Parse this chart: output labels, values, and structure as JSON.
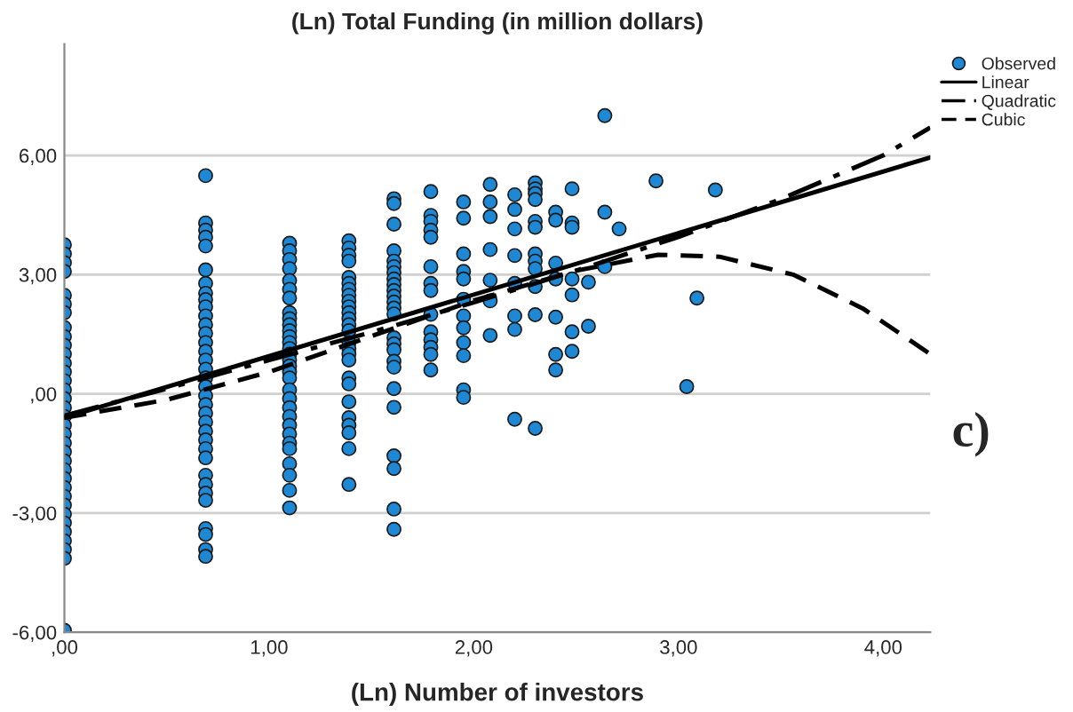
{
  "chart_data": {
    "type": "scatter",
    "title": "(Ln) Total Funding (in million dollars)",
    "xlabel": "(Ln) Number of investors",
    "annotations": [
      "c)"
    ],
    "xlim": [
      0,
      4.23
    ],
    "ylim": [
      -6,
      8.8
    ],
    "xticks": [
      {
        "value": 0,
        "label": ",00"
      },
      {
        "value": 1,
        "label": "1,00"
      },
      {
        "value": 2,
        "label": "2,00"
      },
      {
        "value": 3,
        "label": "3,00"
      },
      {
        "value": 4,
        "label": "4,00"
      }
    ],
    "yticks": [
      {
        "value": -6,
        "label": "-6,00"
      },
      {
        "value": -3,
        "label": "-3,00"
      },
      {
        "value": 0,
        "label": ",00"
      },
      {
        "value": 3,
        "label": "3,00"
      },
      {
        "value": 6,
        "label": "6,00"
      }
    ],
    "grid": "y",
    "legend": "top right",
    "series": [
      {
        "name": "Observed",
        "marker": "circle",
        "color": "#1e88d4",
        "x": [
          0,
          0,
          0,
          0,
          0,
          0,
          0,
          0,
          0,
          0,
          0,
          0,
          0,
          0,
          0,
          0,
          0,
          0,
          0,
          0,
          0,
          0,
          0,
          0,
          0,
          0,
          0,
          0,
          0,
          0,
          0,
          0,
          0,
          0,
          0,
          0.69,
          0.69,
          0.69,
          0.69,
          0.69,
          0.69,
          0.69,
          0.69,
          0.69,
          0.69,
          0.69,
          0.69,
          0.69,
          0.69,
          0.69,
          0.69,
          0.69,
          0.69,
          0.69,
          0.69,
          0.69,
          0.69,
          0.69,
          0.69,
          0.69,
          0.69,
          0.69,
          0.69,
          0.69,
          0.69,
          0.69,
          0.69,
          0.69,
          0.69,
          0.69,
          1.1,
          1.1,
          1.1,
          1.1,
          1.1,
          1.1,
          1.1,
          1.1,
          1.1,
          1.1,
          1.1,
          1.1,
          1.1,
          1.1,
          1.1,
          1.1,
          1.1,
          1.1,
          1.1,
          1.1,
          1.1,
          1.1,
          1.1,
          1.1,
          1.1,
          1.1,
          1.1,
          1.1,
          1.1,
          1.1,
          1.1,
          1.39,
          1.39,
          1.39,
          1.39,
          1.39,
          1.39,
          1.39,
          1.39,
          1.39,
          1.39,
          1.39,
          1.39,
          1.39,
          1.39,
          1.39,
          1.39,
          1.39,
          1.39,
          1.39,
          1.39,
          1.39,
          1.39,
          1.39,
          1.39,
          1.39,
          1.39,
          1.61,
          1.61,
          1.61,
          1.61,
          1.61,
          1.61,
          1.61,
          1.61,
          1.61,
          1.61,
          1.61,
          1.61,
          1.61,
          1.61,
          1.61,
          1.61,
          1.61,
          1.61,
          1.61,
          1.61,
          1.61,
          1.61,
          1.61,
          1.61,
          1.61,
          1.79,
          1.79,
          1.79,
          1.79,
          1.79,
          1.79,
          1.79,
          1.79,
          1.79,
          1.79,
          1.79,
          1.79,
          1.79,
          1.79,
          1.95,
          1.95,
          1.95,
          1.95,
          1.95,
          1.95,
          1.95,
          1.95,
          1.95,
          1.95,
          1.95,
          1.95,
          2.08,
          2.08,
          2.08,
          2.08,
          2.08,
          2.08,
          2.08,
          2.2,
          2.2,
          2.2,
          2.2,
          2.2,
          2.2,
          2.2,
          2.2,
          2.3,
          2.3,
          2.3,
          2.3,
          2.3,
          2.3,
          2.3,
          2.3,
          2.3,
          2.3,
          2.3,
          2.3,
          2.4,
          2.4,
          2.4,
          2.4,
          2.4,
          2.4,
          2.4,
          2.48,
          2.48,
          2.48,
          2.48,
          2.48,
          2.48,
          2.48,
          2.56,
          2.56,
          2.64,
          2.64,
          2.64,
          2.71,
          2.89,
          3.04,
          3.09,
          3.18
        ],
        "values": [
          3.75,
          3.52,
          3.3,
          3.08,
          2.48,
          2.26,
          2.04,
          1.67,
          1.44,
          1.22,
          1.0,
          0.77,
          0.55,
          0.33,
          0.1,
          -0.12,
          -0.35,
          -0.57,
          -0.79,
          -1.01,
          -1.24,
          -1.46,
          -1.69,
          -1.91,
          -2.13,
          -2.36,
          -2.58,
          -2.8,
          -3.03,
          -3.25,
          -3.47,
          -3.7,
          -3.92,
          -4.14,
          -5.95,
          5.49,
          4.3,
          4.12,
          3.94,
          3.72,
          3.12,
          2.78,
          2.53,
          2.37,
          2.19,
          1.96,
          1.74,
          1.52,
          1.29,
          1.07,
          0.85,
          0.62,
          0.4,
          0.18,
          -0.05,
          -0.27,
          -0.49,
          -0.71,
          -0.94,
          -1.16,
          -1.38,
          -1.61,
          -2.05,
          -2.28,
          -2.5,
          -2.68,
          -3.39,
          -3.54,
          -3.92,
          -4.09,
          3.79,
          3.6,
          3.38,
          3.15,
          2.85,
          2.63,
          2.41,
          2.04,
          1.89,
          1.74,
          1.59,
          1.44,
          1.29,
          1.14,
          1.0,
          0.85,
          0.7,
          0.55,
          0.4,
          0.1,
          -0.12,
          -0.35,
          -0.57,
          -0.79,
          -1.01,
          -1.24,
          -1.38,
          -1.76,
          -2.05,
          -2.43,
          -2.87,
          3.85,
          3.67,
          3.49,
          3.34,
          2.93,
          2.78,
          2.63,
          2.48,
          2.33,
          2.19,
          2.04,
          1.89,
          1.74,
          1.59,
          1.29,
          1.14,
          1.0,
          0.85,
          0.4,
          0.25,
          -0.2,
          -0.6,
          -0.79,
          -0.98,
          -1.38,
          -2.28,
          4.91,
          4.79,
          4.27,
          3.6,
          3.34,
          3.2,
          3.05,
          2.89,
          2.75,
          2.6,
          2.46,
          2.31,
          2.16,
          2.01,
          1.41,
          1.26,
          1.11,
          0.82,
          0.67,
          0.13,
          -0.34,
          -1.56,
          -1.88,
          -2.9,
          -3.41,
          5.09,
          4.49,
          4.34,
          4.12,
          3.94,
          3.2,
          2.78,
          2.6,
          2.0,
          1.56,
          1.36,
          1.17,
          0.99,
          0.6,
          4.83,
          4.42,
          3.52,
          3.08,
          2.89,
          2.38,
          1.96,
          1.66,
          1.29,
          0.96,
          0.1,
          -0.09,
          5.27,
          4.83,
          4.46,
          3.63,
          2.86,
          2.34,
          1.47,
          5.01,
          4.64,
          4.15,
          3.48,
          2.78,
          1.96,
          1.62,
          -0.64,
          5.31,
          5.16,
          5.04,
          4.89,
          4.34,
          4.19,
          3.52,
          3.34,
          3.15,
          2.7,
          1.99,
          -0.87,
          4.57,
          4.37,
          3.29,
          2.89,
          1.93,
          0.99,
          0.6,
          5.16,
          4.3,
          4.19,
          2.89,
          2.49,
          1.56,
          1.07,
          2.81,
          1.7,
          7.0,
          4.57,
          3.2,
          4.15,
          5.36,
          0.18,
          2.41,
          5.13
        ]
      },
      {
        "name": "Linear",
        "type": "line",
        "line_style": "solid",
        "color": "#000000",
        "x": [
          0,
          4.23
        ],
        "values": [
          -0.6,
          5.95
        ]
      },
      {
        "name": "Quadratic",
        "type": "line",
        "line_style": "dashdot",
        "color": "#000000",
        "x": [
          0,
          0.5,
          1,
          1.5,
          2,
          2.5,
          3,
          3.5,
          4,
          4.23
        ],
        "values": [
          -0.55,
          0.13,
          0.85,
          1.55,
          2.3,
          3.1,
          3.95,
          4.9,
          6.0,
          6.7
        ]
      },
      {
        "name": "Cubic",
        "type": "line",
        "line_style": "dashed",
        "color": "#000000",
        "x": [
          0,
          0.5,
          1,
          1.5,
          2,
          2.5,
          2.9,
          3.2,
          3.56,
          3.9,
          4.23
        ],
        "values": [
          -0.6,
          -0.15,
          0.55,
          1.45,
          2.35,
          3.1,
          3.5,
          3.45,
          3.0,
          2.15,
          1.0
        ]
      }
    ]
  }
}
